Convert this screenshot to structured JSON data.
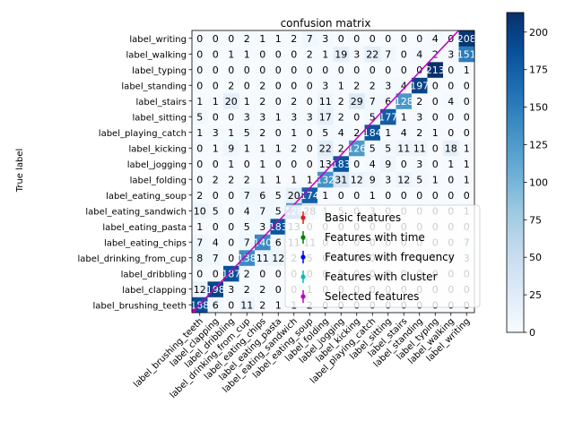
{
  "chart_data": {
    "type": "heatmap",
    "title": "confusion matrix",
    "ylabel": "True label",
    "xlabel": "",
    "labels": [
      "label_brushing_teeth",
      "label_clapping",
      "label_dribbling",
      "label_drinking_from_cup",
      "label_eating_chips",
      "label_eating_pasta",
      "label_eating_sandwich",
      "label_eating_soup",
      "label_folding",
      "label_jogging",
      "label_kicking",
      "label_playing_catch",
      "label_sitting",
      "label_stairs",
      "label_standing",
      "label_typing",
      "label_walking",
      "label_writing"
    ],
    "matrix": [
      [
        188,
        6,
        0,
        11,
        2,
        1,
        1,
        2,
        0,
        0,
        0,
        0,
        0,
        0,
        0,
        0,
        0,
        0
      ],
      [
        12,
        198,
        3,
        2,
        2,
        0,
        0,
        1,
        0,
        0,
        0,
        0,
        0,
        0,
        0,
        0,
        0,
        0
      ],
      [
        0,
        0,
        187,
        2,
        0,
        0,
        0,
        0,
        0,
        0,
        0,
        0,
        0,
        0,
        0,
        0,
        0,
        0
      ],
      [
        8,
        7,
        0,
        138,
        11,
        12,
        2,
        5,
        0,
        0,
        0,
        0,
        0,
        0,
        0,
        0,
        0,
        3
      ],
      [
        7,
        4,
        0,
        7,
        140,
        6,
        11,
        11,
        0,
        0,
        0,
        0,
        0,
        0,
        0,
        0,
        0,
        7
      ],
      [
        1,
        0,
        0,
        5,
        3,
        183,
        13,
        0,
        0,
        0,
        0,
        0,
        0,
        0,
        0,
        0,
        0,
        0
      ],
      [
        10,
        5,
        0,
        4,
        7,
        5,
        128,
        28,
        1,
        5,
        0,
        3,
        0,
        0,
        0,
        0,
        0,
        1
      ],
      [
        2,
        0,
        0,
        7,
        6,
        5,
        20,
        174,
        1,
        0,
        0,
        1,
        0,
        0,
        0,
        0,
        0,
        0
      ],
      [
        0,
        2,
        2,
        2,
        1,
        1,
        1,
        1,
        132,
        31,
        12,
        9,
        3,
        12,
        5,
        1,
        0,
        1
      ],
      [
        0,
        0,
        1,
        0,
        1,
        0,
        0,
        0,
        13,
        183,
        0,
        4,
        9,
        0,
        3,
        0,
        1,
        1
      ],
      [
        0,
        1,
        9,
        1,
        1,
        1,
        2,
        0,
        22,
        2,
        126,
        5,
        5,
        11,
        11,
        0,
        18,
        1
      ],
      [
        1,
        3,
        1,
        5,
        2,
        0,
        1,
        0,
        5,
        4,
        2,
        184,
        1,
        4,
        2,
        1,
        0,
        0
      ],
      [
        5,
        0,
        0,
        3,
        3,
        1,
        3,
        3,
        17,
        2,
        0,
        5,
        177,
        1,
        3,
        0,
        0,
        0
      ],
      [
        1,
        1,
        20,
        1,
        2,
        0,
        2,
        0,
        11,
        2,
        29,
        7,
        6,
        128,
        2,
        0,
        4,
        0
      ],
      [
        0,
        0,
        2,
        0,
        2,
        0,
        0,
        0,
        3,
        1,
        2,
        2,
        3,
        4,
        197,
        0,
        0,
        0
      ],
      [
        0,
        0,
        0,
        0,
        0,
        0,
        0,
        0,
        0,
        0,
        0,
        0,
        0,
        0,
        0,
        213,
        0,
        1
      ],
      [
        0,
        0,
        1,
        1,
        0,
        0,
        0,
        2,
        1,
        19,
        3,
        22,
        7,
        0,
        4,
        2,
        3,
        151
      ],
      [
        0,
        0,
        0,
        2,
        1,
        1,
        2,
        7,
        3,
        0,
        0,
        0,
        0,
        0,
        0,
        4,
        0,
        208
      ]
    ],
    "colormap": "Blues",
    "colorbar": {
      "min": 0,
      "max": 213,
      "ticks": [
        0,
        25,
        50,
        75,
        100,
        125,
        150,
        175,
        200
      ]
    },
    "legend": {
      "placement": "bottom-right",
      "entries": [
        {
          "label": "Basic features",
          "color": "#e41a1c"
        },
        {
          "label": "Features with time",
          "color": "#008000"
        },
        {
          "label": "Features with frequency",
          "color": "#0000ff"
        },
        {
          "label": "Features with cluster",
          "color": "#00bfbf"
        },
        {
          "label": "Selected features",
          "color": "#bf00bf"
        }
      ]
    },
    "overlay_lines": [
      {
        "name": "Basic features",
        "color": "#e41a1c",
        "x": [
          0
        ],
        "y": [
          0
        ]
      },
      {
        "name": "Features with time",
        "color": "#008000",
        "x": [
          0
        ],
        "y": [
          0
        ]
      },
      {
        "name": "Features with frequency",
        "color": "#0000ff",
        "x": [
          0
        ],
        "y": [
          0
        ]
      },
      {
        "name": "Features with cluster",
        "color": "#00bfbf",
        "x": [
          0
        ],
        "y": [
          0
        ]
      },
      {
        "name": "Selected features",
        "color": "#bf00bf",
        "x": [
          0,
          17
        ],
        "y": [
          0,
          18
        ]
      }
    ]
  }
}
